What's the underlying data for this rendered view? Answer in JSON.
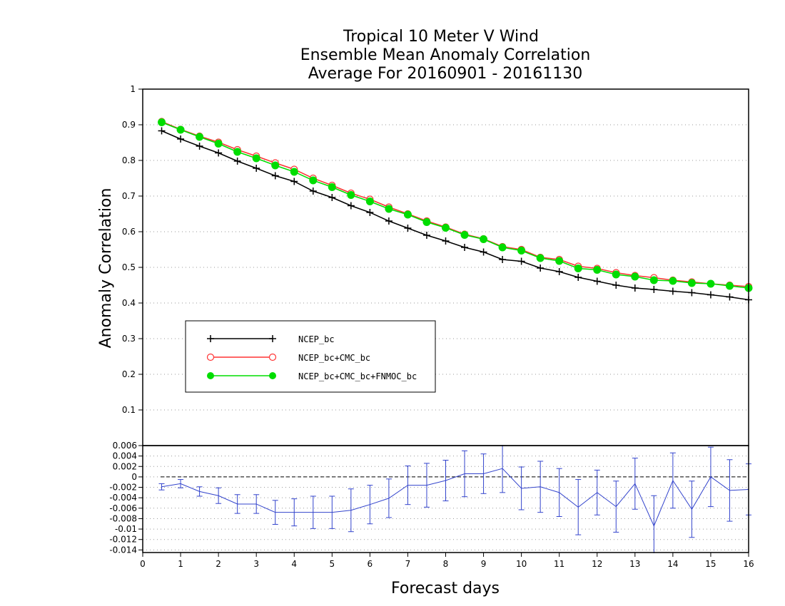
{
  "title_lines": [
    "Tropical 10 Meter V Wind",
    "Ensemble Mean Anomaly Correlation",
    "Average For 20160901 - 20161130"
  ],
  "chart_data": [
    {
      "type": "line",
      "ylabel": "Anomaly Correlation",
      "ylim": [
        0,
        1
      ],
      "xlim": [
        0,
        16
      ],
      "y_ticks": [
        "0.1",
        "0.2",
        "0.3",
        "0.4",
        "0.5",
        "0.6",
        "0.7",
        "0.8",
        "0.9",
        "1"
      ],
      "grid": "dotted horizontal",
      "legend_position": "lower-left",
      "x": [
        0.5,
        1,
        1.5,
        2,
        2.5,
        3,
        3.5,
        4,
        4.5,
        5,
        5.5,
        6,
        6.5,
        7,
        7.5,
        8,
        8.5,
        9,
        9.5,
        10,
        10.5,
        11,
        11.5,
        12,
        12.5,
        13,
        13.5,
        14,
        14.5,
        15,
        15.5,
        16
      ],
      "series": [
        {
          "name": "NCEP_bc",
          "color": "#000000",
          "marker": "plus",
          "values": [
            0.883,
            0.86,
            0.84,
            0.821,
            0.798,
            0.778,
            0.757,
            0.741,
            0.714,
            0.696,
            0.673,
            0.654,
            0.63,
            0.61,
            0.59,
            0.574,
            0.556,
            0.543,
            0.522,
            0.517,
            0.498,
            0.488,
            0.472,
            0.461,
            0.45,
            0.442,
            0.438,
            0.433,
            0.429,
            0.423,
            0.417,
            0.409
          ]
        },
        {
          "name": "NCEP_bc+CMC_bc",
          "color": "#ff3333",
          "marker": "open-circle",
          "values": [
            0.909,
            0.887,
            0.868,
            0.851,
            0.83,
            0.812,
            0.793,
            0.775,
            0.75,
            0.73,
            0.708,
            0.691,
            0.669,
            0.65,
            0.63,
            0.613,
            0.593,
            0.58,
            0.558,
            0.55,
            0.528,
            0.522,
            0.503,
            0.497,
            0.485,
            0.477,
            0.471,
            0.464,
            0.459,
            0.454,
            0.45,
            0.446
          ]
        },
        {
          "name": "NCEP_bc+CMC_bc+FNMOC_bc",
          "color": "#00dd00",
          "marker": "filled-circle",
          "values": [
            0.907,
            0.886,
            0.866,
            0.847,
            0.824,
            0.806,
            0.786,
            0.768,
            0.744,
            0.725,
            0.703,
            0.685,
            0.664,
            0.648,
            0.627,
            0.611,
            0.591,
            0.579,
            0.556,
            0.547,
            0.526,
            0.518,
            0.497,
            0.493,
            0.48,
            0.474,
            0.464,
            0.462,
            0.456,
            0.454,
            0.448,
            0.442
          ]
        }
      ]
    },
    {
      "type": "line",
      "xlabel": "Forecast days",
      "ylim": [
        -0.0145,
        0.006
      ],
      "xlim": [
        0,
        16
      ],
      "x_ticks": [
        "0",
        "1",
        "2",
        "3",
        "4",
        "5",
        "6",
        "7",
        "8",
        "9",
        "10",
        "11",
        "12",
        "13",
        "14",
        "15",
        "16"
      ],
      "y_ticks": [
        "-0.014",
        "-0.012",
        "-0.01",
        "-0.008",
        "-0.006",
        "-0.004",
        "-0.002",
        "0",
        "0.002",
        "0.004",
        "0.006"
      ],
      "grid": "dotted horizontal",
      "x": [
        0.5,
        1,
        1.5,
        2,
        2.5,
        3,
        3.5,
        4,
        4.5,
        5,
        5.5,
        6,
        6.5,
        7,
        7.5,
        8,
        8.5,
        9,
        9.5,
        10,
        10.5,
        11,
        11.5,
        12,
        12.5,
        13,
        13.5,
        14,
        14.5,
        15,
        15.5,
        16
      ],
      "series": [
        {
          "color": "#3344cc",
          "marker": "errorbar",
          "values": [
            -0.0019,
            -0.0013,
            -0.0028,
            -0.0036,
            -0.0052,
            -0.0052,
            -0.0068,
            -0.0068,
            -0.0068,
            -0.0068,
            -0.0064,
            -0.0053,
            -0.0041,
            -0.0016,
            -0.0016,
            -0.0007,
            0.0006,
            0.0006,
            0.0016,
            -0.0022,
            -0.0019,
            -0.003,
            -0.0058,
            -0.003,
            -0.0057,
            -0.0013,
            -0.0094,
            -0.0007,
            -0.0062,
            0.0,
            -0.0026,
            -0.0024
          ],
          "error": [
            0.0006,
            0.0008,
            0.0009,
            0.0015,
            0.0018,
            0.0018,
            0.0023,
            0.0026,
            0.0031,
            0.0031,
            0.0041,
            0.0037,
            0.0037,
            0.0037,
            0.0042,
            0.0039,
            0.0044,
            0.0038,
            0.0046,
            0.0041,
            0.0049,
            0.0046,
            0.0053,
            0.0043,
            0.0049,
            0.0049,
            0.0058,
            0.0053,
            0.0054,
            0.0057,
            0.0059,
            0.0049
          ]
        }
      ]
    }
  ]
}
